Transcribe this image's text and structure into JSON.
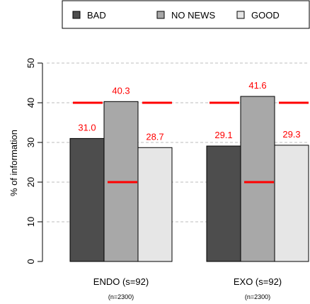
{
  "chart_data": {
    "type": "bar",
    "ylabel": "% of information",
    "ylim": [
      0,
      50
    ],
    "yticks": [
      0,
      10,
      20,
      30,
      40,
      50
    ],
    "grid": "horizontal dashed",
    "legend_position": "top",
    "groups": [
      {
        "label": "ENDO (s=92)",
        "sublabel": "(n=2300)"
      },
      {
        "label": "EXO (s=92)",
        "sublabel": "(n=2300)"
      }
    ],
    "series": [
      {
        "name": "BAD",
        "color": "#4d4d4d",
        "values": [
          31.0,
          29.1
        ]
      },
      {
        "name": "NO NEWS",
        "color": "#a8a8a8",
        "values": [
          40.3,
          41.6
        ]
      },
      {
        "name": "GOOD",
        "color": "#e6e6e6",
        "values": [
          28.7,
          29.3
        ]
      }
    ],
    "value_labels": [
      [
        "31.0",
        "29.1"
      ],
      [
        "40.3",
        "41.6"
      ],
      [
        "28.7",
        "29.3"
      ]
    ],
    "reference_lines": {
      "color": "#ff0000",
      "upper": [
        40,
        40
      ],
      "lower": [
        20,
        20
      ]
    },
    "label_color": "#ff0000"
  }
}
